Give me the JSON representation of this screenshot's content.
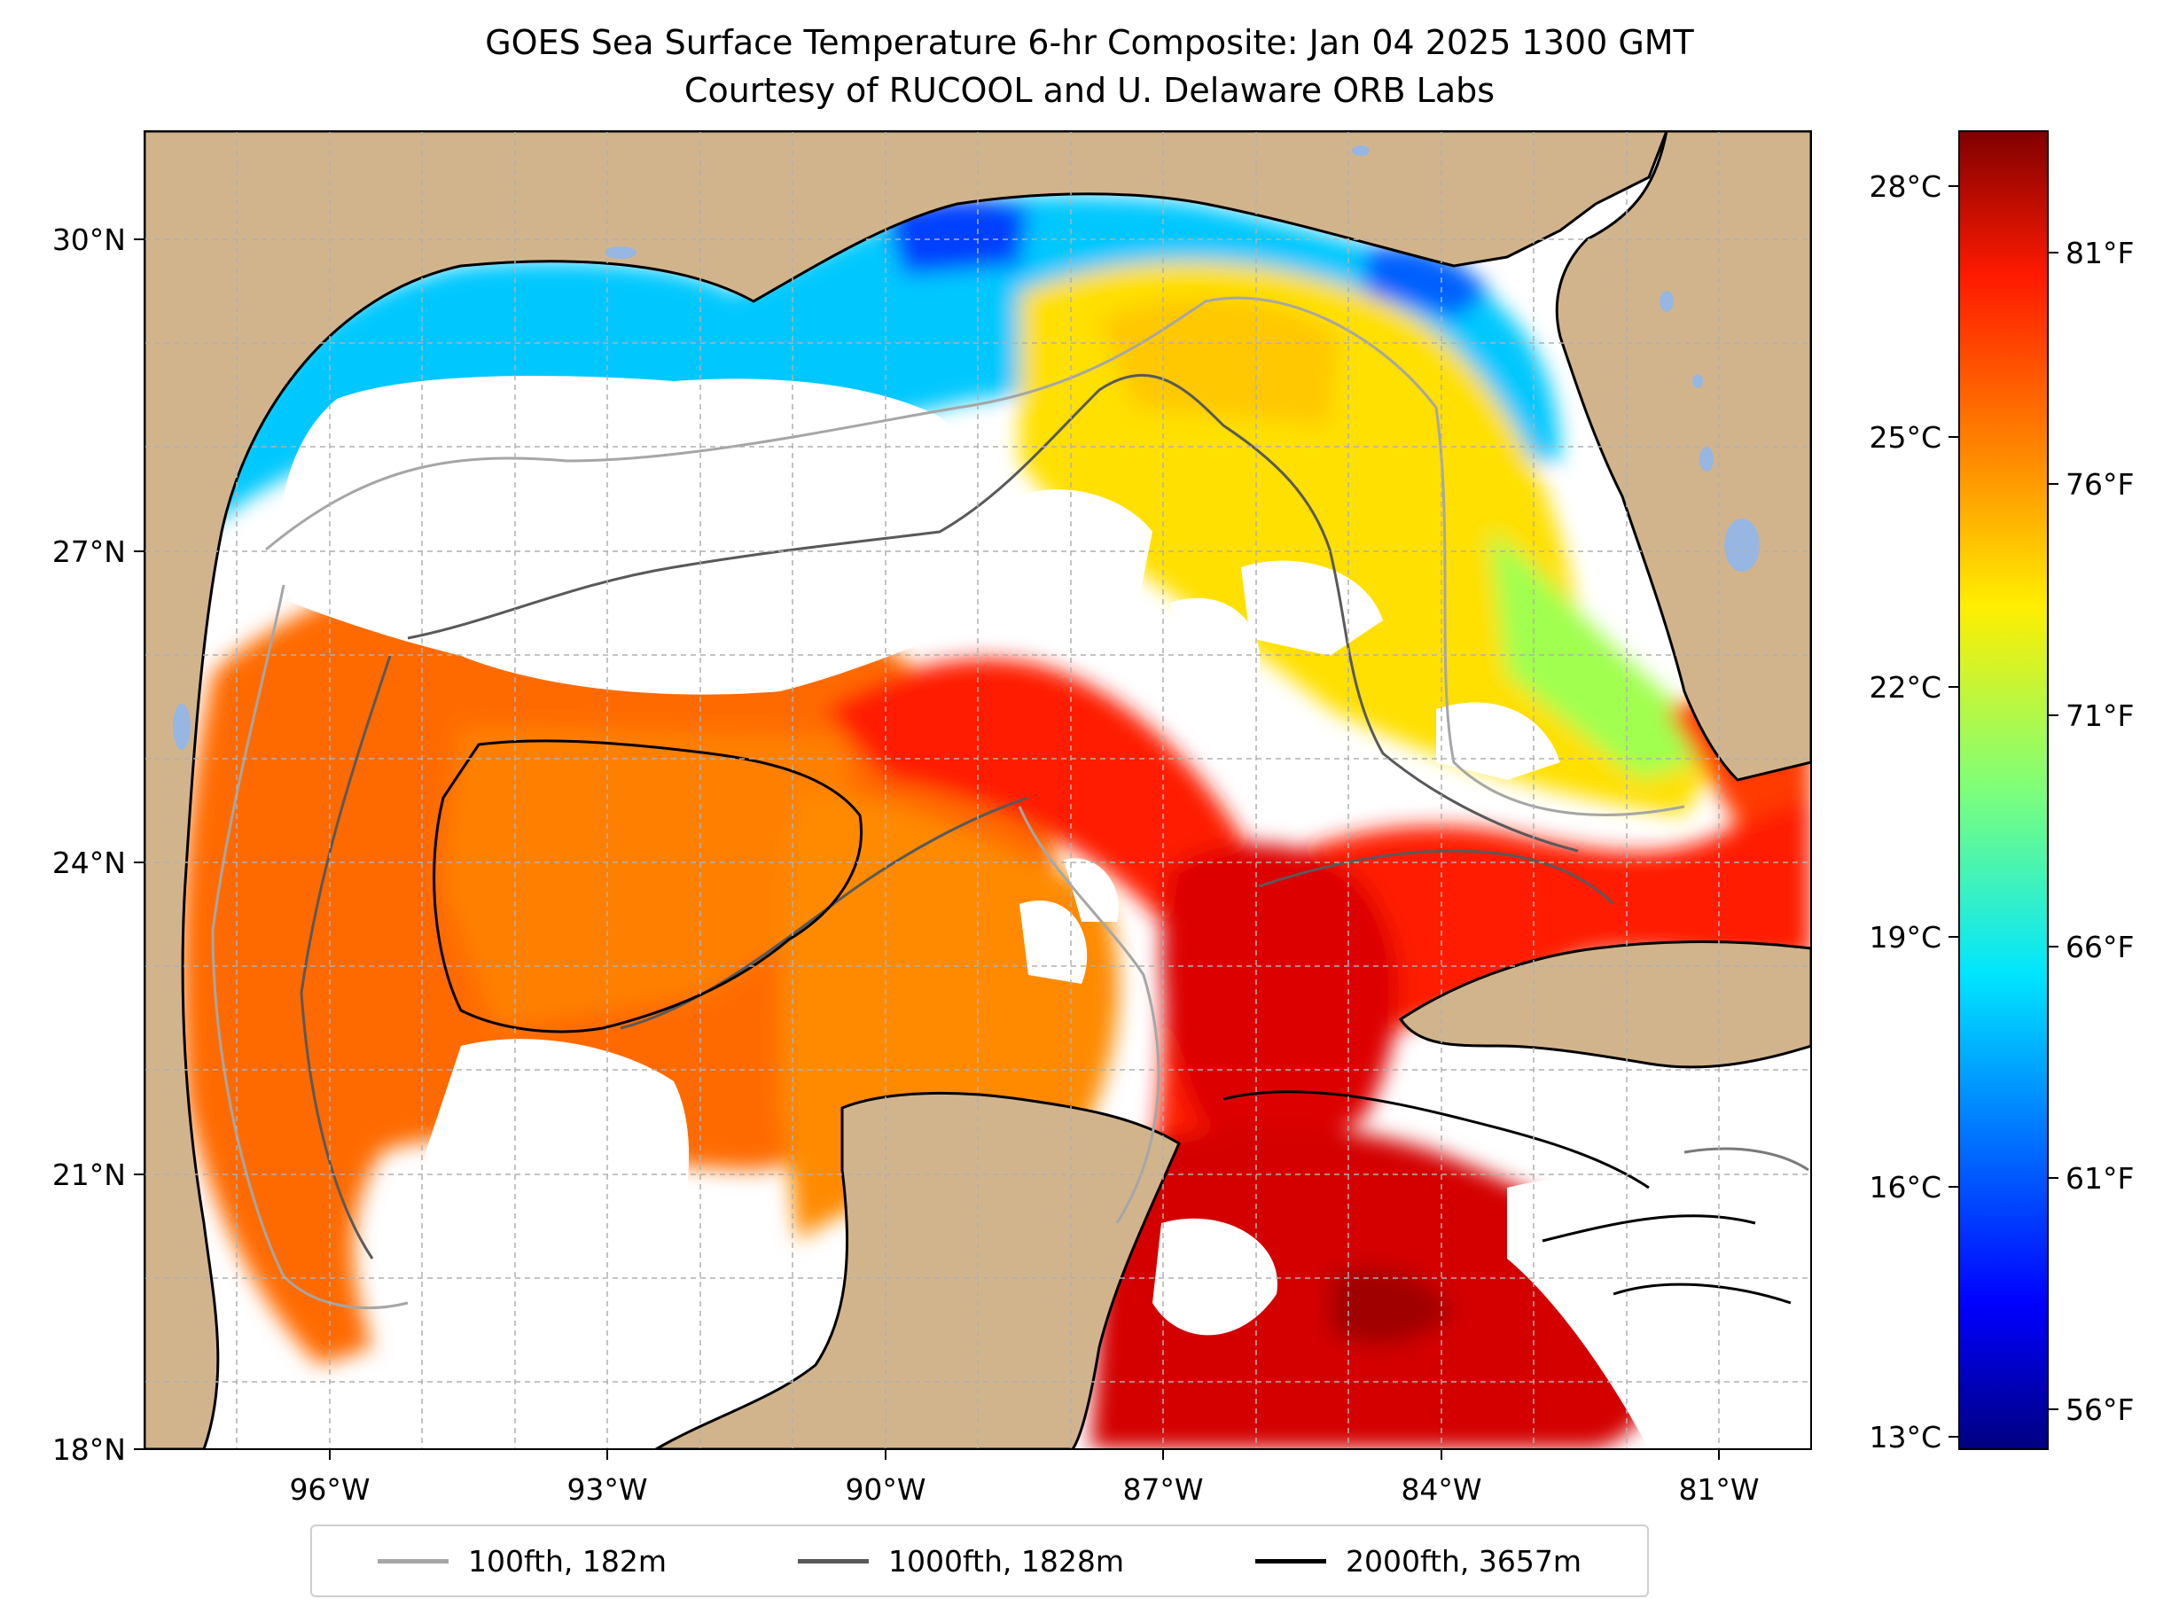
{
  "title_line1": "GOES Sea Surface Temperature 6-hr Composite: Jan 04 2025 1300 GMT",
  "title_line2": "Courtesy of RUCOOL and U. Delaware ORB Labs",
  "map": {
    "lat_labels": [
      "30°N",
      "27°N",
      "24°N",
      "21°N",
      "18°N"
    ],
    "lon_labels": [
      "96°W",
      "93°W",
      "90°W",
      "87°W",
      "84°W",
      "81°W"
    ],
    "colors": {
      "land": "#d2b48c",
      "lake": "#97b6e1",
      "water_no_data": "#ffffff",
      "grid": "#b0b0b0"
    }
  },
  "colorbar": {
    "celsius_labels": [
      "28°C",
      "25°C",
      "22°C",
      "19°C",
      "16°C",
      "13°C"
    ],
    "fahrenheit_labels": [
      "81°F",
      "76°F",
      "71°F",
      "66°F",
      "61°F",
      "56°F"
    ],
    "colormap": "jet"
  },
  "legend": [
    {
      "label": "100fth, 182m",
      "color": "#a6a6a6"
    },
    {
      "label": "1000fth, 1828m",
      "color": "#595959"
    },
    {
      "label": "2000fth, 3657m",
      "color": "#000000"
    }
  ]
}
